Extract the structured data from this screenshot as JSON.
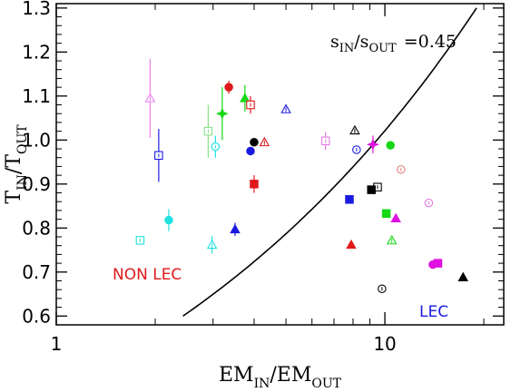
{
  "chart_data": {
    "type": "scatter",
    "title": "",
    "xlabel": {
      "main1": "EM",
      "sub1": "IN",
      "slash": "/EM",
      "sub2": "OUT"
    },
    "ylabel": {
      "main1": "T",
      "sub1": "IN",
      "slash": "/T",
      "sub2": "OUT"
    },
    "xscale": "log",
    "xlim": [
      1,
      23
    ],
    "ylim": [
      0.58,
      1.31
    ],
    "xticks": [
      {
        "value": 1,
        "label": "1"
      },
      {
        "value": 10,
        "label": "10"
      }
    ],
    "yticks": [
      {
        "value": 0.6,
        "label": "0.6"
      },
      {
        "value": 0.7,
        "label": "0.7"
      },
      {
        "value": 0.8,
        "label": "0.8"
      },
      {
        "value": 0.9,
        "label": "0.9"
      },
      {
        "value": 1.0,
        "label": "1.0"
      },
      {
        "value": 1.1,
        "label": "1.1"
      },
      {
        "value": 1.2,
        "label": "1.2"
      },
      {
        "value": 1.3,
        "label": "1.3"
      }
    ],
    "grid": false,
    "curve": {
      "exponent": 0.45,
      "label": {
        "s1": "s",
        "sub1": "IN",
        "slash": "/s",
        "sub2": "OUT",
        "eq": "=0.45"
      }
    },
    "annotations": [
      {
        "text": "NON LEC",
        "color": "#e0191b"
      },
      {
        "text": "LEC",
        "color": "#1a1ae0"
      }
    ],
    "points": [
      {
        "x": 3.35,
        "y": 1.12,
        "marker": "circle",
        "filled": true,
        "color": "#e0191b",
        "err": 0.015
      },
      {
        "x": 3.75,
        "y": 1.095,
        "marker": "triangle",
        "filled": true,
        "color": "#16d816",
        "err": 0.03
      },
      {
        "x": 3.9,
        "y": 1.08,
        "marker": "square",
        "filled": false,
        "color": "#e0191b",
        "err": 0.02
      },
      {
        "x": 3.2,
        "y": 1.06,
        "marker": "star",
        "filled": true,
        "color": "#16d816",
        "err": 0.06
      },
      {
        "x": 1.93,
        "y": 1.095,
        "marker": "triangle",
        "filled": false,
        "color": "#ee82ee",
        "err": 0.09
      },
      {
        "x": 5.0,
        "y": 1.07,
        "marker": "triangle",
        "filled": false,
        "color": "#1a1ae0",
        "err": 0.0
      },
      {
        "x": 2.9,
        "y": 1.02,
        "marker": "square",
        "filled": false,
        "color": "#8ae08a",
        "err": 0.06
      },
      {
        "x": 3.05,
        "y": 0.985,
        "marker": "circle",
        "filled": false,
        "color": "#20e0e0",
        "err": 0.025
      },
      {
        "x": 4.0,
        "y": 0.995,
        "marker": "circle",
        "filled": true,
        "color": "#000000",
        "err": 0.0
      },
      {
        "x": 3.9,
        "y": 0.975,
        "marker": "circle",
        "filled": true,
        "color": "#1a1ae0",
        "err": 0.0
      },
      {
        "x": 4.3,
        "y": 0.995,
        "marker": "triangle",
        "filled": false,
        "color": "#e0191b",
        "err": 0.0
      },
      {
        "x": 2.05,
        "y": 0.965,
        "marker": "square",
        "filled": false,
        "color": "#1a1ae0",
        "err": 0.06
      },
      {
        "x": 6.6,
        "y": 0.998,
        "marker": "square",
        "filled": false,
        "color": "#e07ae0",
        "err": 0.02
      },
      {
        "x": 8.1,
        "y": 1.022,
        "marker": "triangle",
        "filled": false,
        "color": "#000000",
        "err": 0.0
      },
      {
        "x": 8.2,
        "y": 0.978,
        "marker": "circle",
        "filled": false,
        "color": "#1a1ae0",
        "err": 0.0
      },
      {
        "x": 9.2,
        "y": 0.99,
        "marker": "star",
        "filled": true,
        "color": "#e010e0",
        "err": 0.02
      },
      {
        "x": 10.4,
        "y": 0.988,
        "marker": "circle",
        "filled": true,
        "color": "#16d816",
        "err": 0.0
      },
      {
        "x": 11.2,
        "y": 0.933,
        "marker": "circle",
        "filled": false,
        "color": "#e07a7a",
        "err": 0.0
      },
      {
        "x": 4.0,
        "y": 0.9,
        "marker": "square",
        "filled": true,
        "color": "#e0191b",
        "err": 0.02
      },
      {
        "x": 9.5,
        "y": 0.893,
        "marker": "square",
        "filled": false,
        "color": "#000000",
        "err": 0.0
      },
      {
        "x": 9.1,
        "y": 0.887,
        "marker": "square",
        "filled": true,
        "color": "#000000",
        "err": 0.0
      },
      {
        "x": 7.8,
        "y": 0.865,
        "marker": "square",
        "filled": true,
        "color": "#1a1ae0",
        "err": 0.0
      },
      {
        "x": 13.6,
        "y": 0.857,
        "marker": "circle",
        "filled": false,
        "color": "#e07ae0",
        "err": 0.0
      },
      {
        "x": 10.1,
        "y": 0.833,
        "marker": "square",
        "filled": true,
        "color": "#16d816",
        "err": 0.0
      },
      {
        "x": 10.8,
        "y": 0.822,
        "marker": "triangle",
        "filled": true,
        "color": "#e010e0",
        "err": 0.0
      },
      {
        "x": 2.2,
        "y": 0.818,
        "marker": "circle",
        "filled": true,
        "color": "#20e0e0",
        "err": 0.025
      },
      {
        "x": 3.5,
        "y": 0.797,
        "marker": "triangle",
        "filled": true,
        "color": "#1a1ae0",
        "err": 0.015
      },
      {
        "x": 1.8,
        "y": 0.772,
        "marker": "square",
        "filled": false,
        "color": "#20e0e0",
        "err": 0.0
      },
      {
        "x": 2.98,
        "y": 0.762,
        "marker": "triangle",
        "filled": false,
        "color": "#20e0e0",
        "err": 0.02
      },
      {
        "x": 7.9,
        "y": 0.762,
        "marker": "triangle",
        "filled": true,
        "color": "#e0191b",
        "err": 0.0
      },
      {
        "x": 10.5,
        "y": 0.772,
        "marker": "triangle",
        "filled": false,
        "color": "#16d816",
        "err": 0.0
      },
      {
        "x": 14.0,
        "y": 0.717,
        "marker": "circle",
        "filled": true,
        "color": "#e010e0",
        "err": 0.0
      },
      {
        "x": 14.5,
        "y": 0.72,
        "marker": "square",
        "filled": true,
        "color": "#e010e0",
        "err": 0.0
      },
      {
        "x": 17.3,
        "y": 0.688,
        "marker": "triangle",
        "filled": true,
        "color": "#000000",
        "err": 0.0
      },
      {
        "x": 9.8,
        "y": 0.662,
        "marker": "circle",
        "filled": false,
        "color": "#000000",
        "err": 0.0
      }
    ]
  }
}
